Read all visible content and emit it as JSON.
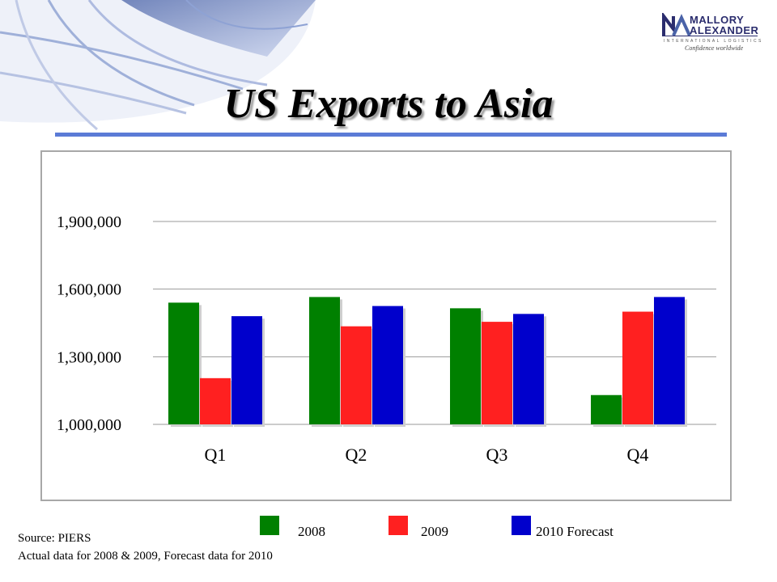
{
  "slide": {
    "title": "US Exports to Asia",
    "source_label": "Source: PIERS",
    "footnote": "Actual data for 2008 & 2009, Forecast data for 2010"
  },
  "logo": {
    "line1": "MALLORY",
    "line2": "ALEXANDER",
    "line3": "INTERNATIONAL LOGISTICS",
    "tagline": "Confidence worldwide"
  },
  "colors": {
    "title_rule": "#5b7bd6",
    "series_2008": "#008000",
    "series_2009": "#ff2020",
    "series_2010": "#0000cc"
  },
  "chart_data": {
    "type": "bar",
    "title": "",
    "xlabel": "",
    "ylabel": "",
    "categories": [
      "Q1",
      "Q2",
      "Q3",
      "Q4"
    ],
    "series": [
      {
        "name": "2008",
        "color": "#008000",
        "values": [
          1540000,
          1565000,
          1515000,
          1130000
        ]
      },
      {
        "name": "2009",
        "color": "#ff2020",
        "values": [
          1205000,
          1435000,
          1455000,
          1500000
        ]
      },
      {
        "name": "2010 Forecast",
        "color": "#0000cc",
        "values": [
          1480000,
          1525000,
          1490000,
          1565000
        ]
      }
    ],
    "ylim": [
      1000000,
      1900000
    ],
    "yticks": [
      1000000,
      1300000,
      1600000,
      1900000
    ],
    "ytick_labels": [
      "1,000,000",
      "1,300,000",
      "1,600,000",
      "1,900,000"
    ],
    "grid": true,
    "legend_position": "bottom"
  }
}
